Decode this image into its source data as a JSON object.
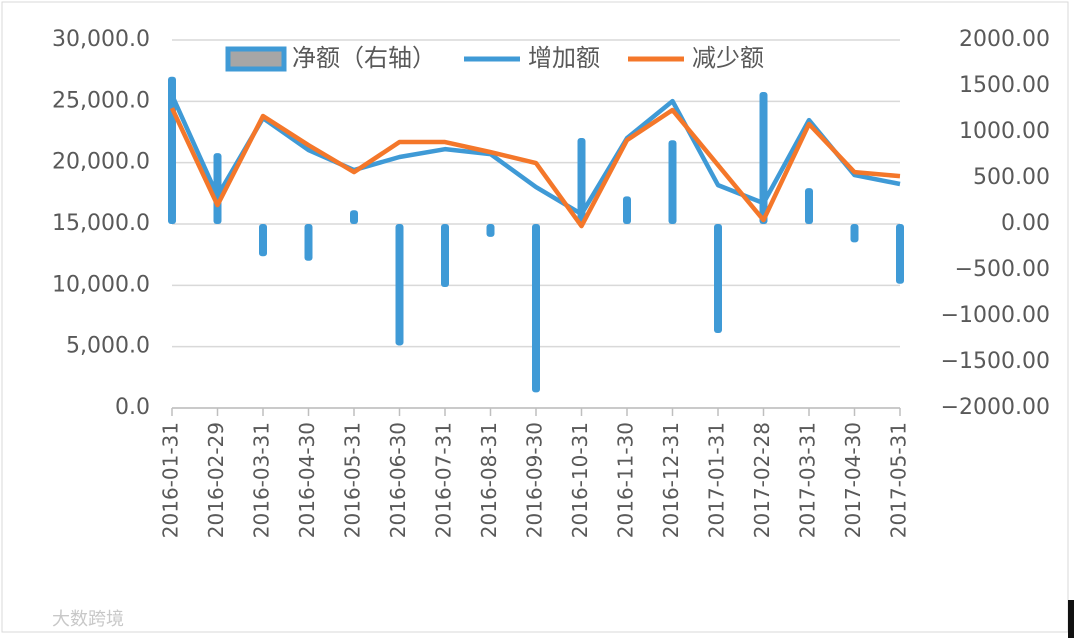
{
  "chart_data": {
    "type": "combo",
    "categories": [
      "2016-01-31",
      "2016-02-29",
      "2016-03-31",
      "2016-04-30",
      "2016-05-31",
      "2016-06-30",
      "2016-07-31",
      "2016-08-31",
      "2016-09-30",
      "2016-10-31",
      "2016-11-30",
      "2016-12-31",
      "2017-01-31",
      "2017-02-28",
      "2017-03-31",
      "2017-04-30",
      "2017-05-31"
    ],
    "series": [
      {
        "name": "净额（右轴）",
        "type": "bar",
        "axis": "y2",
        "color": "#3f9ad6",
        "legend_color": "#a6a6a6",
        "values": [
          1600,
          770,
          -350,
          -400,
          150,
          -1320,
          -685,
          -140,
          -1830,
          935,
          300,
          910,
          -1185,
          1435,
          390,
          -200,
          -650
        ]
      },
      {
        "name": "增加额",
        "type": "line",
        "color": "#3f9ad6",
        "values": [
          25500,
          17280,
          23630,
          21030,
          19400,
          20460,
          21100,
          20700,
          18010,
          15810,
          22000,
          25020,
          18170,
          16700,
          23470,
          18990,
          18260
        ]
      },
      {
        "name": "减少额",
        "type": "line",
        "color": "#f4772a",
        "values": [
          24450,
          16540,
          23800,
          21430,
          19230,
          21680,
          21680,
          20860,
          19970,
          14830,
          21840,
          24290,
          19800,
          15320,
          23150,
          19230,
          18900
        ]
      }
    ],
    "ylim": [
      0,
      30000
    ],
    "yticks": [
      {
        "value": 0,
        "label": "0.0"
      },
      {
        "value": 5000,
        "label": "5,000.0"
      },
      {
        "value": 10000,
        "label": "10,000.0"
      },
      {
        "value": 15000,
        "label": "15,000.0"
      },
      {
        "value": 20000,
        "label": "20,000.0"
      },
      {
        "value": 25000,
        "label": "25,000.0"
      },
      {
        "value": 30000,
        "label": "30,000.0"
      }
    ],
    "y2lim": [
      -2000,
      2000
    ],
    "y2ticks": [
      {
        "value": -2000,
        "label": "−2000.00"
      },
      {
        "value": -1500,
        "label": "−1500.00"
      },
      {
        "value": -1000,
        "label": "−1000.00"
      },
      {
        "value": -500,
        "label": "−500.00"
      },
      {
        "value": 0,
        "label": "0.00"
      },
      {
        "value": 500,
        "label": "500.00"
      },
      {
        "value": 1000,
        "label": "1000.00"
      },
      {
        "value": 1500,
        "label": "1500.00"
      },
      {
        "value": 2000,
        "label": "2000.00"
      }
    ],
    "grid": true,
    "legend": "top",
    "watermark": "大数跨境"
  }
}
